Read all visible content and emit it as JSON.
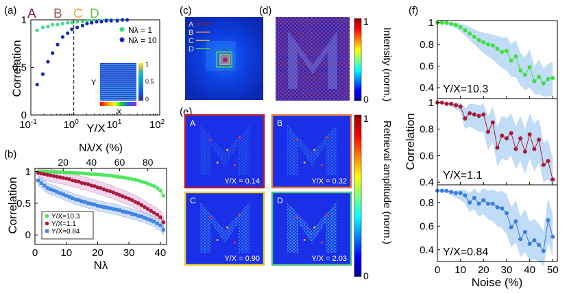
{
  "panel_labels": {
    "a": "(a)",
    "b": "(b)",
    "c": "(c)",
    "d": "(d)",
    "e": "(e)",
    "f": "(f)"
  },
  "letters": {
    "A": {
      "text": "A",
      "color": "#8b1a2b"
    },
    "B": {
      "text": "B",
      "color": "#9a5a5a"
    },
    "C": {
      "text": "C",
      "color": "#e8a23c"
    },
    "D": {
      "text": "D",
      "color": "#62c44a"
    }
  },
  "chart_data": [
    {
      "id": "a",
      "type": "scatter",
      "xscale": "log",
      "xlim": [
        0.1,
        100
      ],
      "ylim": [
        0,
        1
      ],
      "xlabel": "Y/X",
      "ylabel": "Correlation",
      "xticks": [
        {
          "v": 0.1,
          "base": "10",
          "exp": "-1"
        },
        {
          "v": 1,
          "base": "10",
          "exp": "0"
        },
        {
          "v": 10,
          "base": "10",
          "exp": "1"
        },
        {
          "v": 100,
          "base": "10",
          "exp": "2"
        }
      ],
      "yticks": [
        {
          "v": 0,
          "label": "0"
        },
        {
          "v": 0.5,
          "label": "0.5"
        },
        {
          "v": 1,
          "label": "1"
        }
      ],
      "vline_x": 1,
      "series": [
        {
          "name": "Nλ = 1",
          "color": "#3ddc84",
          "x": [
            0.14,
            0.19,
            0.25,
            0.32,
            0.42,
            0.55,
            0.72,
            0.9,
            1.2,
            1.6,
            2.03,
            2.6,
            3.4,
            4.4,
            5.7,
            7.4,
            10.3,
            13.5,
            17.5
          ],
          "y": [
            0.89,
            0.92,
            0.93,
            0.95,
            0.95,
            0.96,
            0.97,
            0.97,
            0.98,
            0.98,
            0.99,
            0.99,
            0.99,
            0.99,
            1.0,
            1.0,
            1.0,
            1.0,
            1.0
          ]
        },
        {
          "name": "Nλ = 10",
          "color": "#1428b4",
          "x": [
            0.14,
            0.19,
            0.25,
            0.32,
            0.42,
            0.55,
            0.72,
            0.9,
            1.2,
            1.6,
            2.03,
            2.6,
            3.4,
            4.4,
            5.7,
            7.4,
            10.3,
            13.5,
            17.5
          ],
          "y": [
            0.32,
            0.43,
            0.56,
            0.65,
            0.74,
            0.82,
            0.86,
            0.9,
            0.92,
            0.94,
            0.96,
            0.97,
            0.98,
            0.98,
            0.99,
            0.99,
            0.99,
            1.0,
            1.0
          ]
        }
      ],
      "inset": {
        "ylabel": "Y",
        "xlabel": "X",
        "ticks": [
          "1",
          "0.5",
          "0"
        ]
      }
    },
    {
      "id": "b",
      "type": "line",
      "xlim": [
        0,
        42
      ],
      "ylim": [
        -0.15,
        1.05
      ],
      "xlabel": "Nλ",
      "ylabel": "Correlation",
      "xticks": [
        0,
        10,
        20,
        30,
        40
      ],
      "yticks": [
        {
          "v": 0,
          "label": "0"
        },
        {
          "v": 0.5,
          "label": "0.5"
        },
        {
          "v": 1,
          "label": "1"
        }
      ],
      "top_axis": {
        "label": "Nλ/X (%)",
        "ticks": [
          {
            "v": 20,
            "label": "20"
          },
          {
            "v": 40,
            "label": "40"
          },
          {
            "v": 60,
            "label": "60"
          },
          {
            "v": 80,
            "label": "80"
          }
        ],
        "max_percent": 93.3
      },
      "series": [
        {
          "name": "Y/X=10.3",
          "color": "#4ee65c",
          "band": "#9df09a",
          "marker": "circle",
          "x": [
            1,
            2,
            3,
            4,
            5,
            6,
            7,
            8,
            9,
            10,
            11,
            12,
            13,
            14,
            15,
            16,
            17,
            18,
            19,
            20,
            21,
            22,
            23,
            24,
            25,
            26,
            27,
            28,
            29,
            30,
            31,
            32,
            33,
            34,
            35,
            36,
            37,
            38,
            39,
            40,
            41
          ],
          "y": [
            1.0,
            1.0,
            1.0,
            1.0,
            0.995,
            0.995,
            0.99,
            0.99,
            0.99,
            0.985,
            0.985,
            0.98,
            0.98,
            0.975,
            0.975,
            0.97,
            0.965,
            0.96,
            0.96,
            0.955,
            0.95,
            0.945,
            0.94,
            0.935,
            0.93,
            0.92,
            0.915,
            0.91,
            0.9,
            0.89,
            0.88,
            0.87,
            0.86,
            0.84,
            0.83,
            0.81,
            0.79,
            0.77,
            0.74,
            0.7,
            0.62
          ],
          "err": 0.02
        },
        {
          "name": "Y/X=1.1",
          "color": "#aa1a36",
          "band": "#e7a6e0",
          "marker": "circle",
          "x": [
            1,
            2,
            3,
            4,
            5,
            6,
            7,
            8,
            9,
            10,
            11,
            12,
            13,
            14,
            15,
            16,
            17,
            18,
            19,
            20,
            21,
            22,
            23,
            24,
            25,
            26,
            27,
            28,
            29,
            30,
            31,
            32,
            33,
            34,
            35,
            36,
            37,
            38,
            39,
            40,
            41
          ],
          "y": [
            0.98,
            0.97,
            0.96,
            0.95,
            0.94,
            0.93,
            0.92,
            0.91,
            0.9,
            0.89,
            0.88,
            0.86,
            0.85,
            0.84,
            0.82,
            0.81,
            0.8,
            0.78,
            0.77,
            0.75,
            0.74,
            0.72,
            0.7,
            0.69,
            0.67,
            0.65,
            0.63,
            0.61,
            0.59,
            0.57,
            0.55,
            0.52,
            0.5,
            0.47,
            0.44,
            0.41,
            0.38,
            0.35,
            0.32,
            0.28,
            0.2
          ],
          "err": 0.1
        },
        {
          "name": "Y/X=0.84",
          "color": "#3f86e6",
          "band": "#b8cdf3",
          "marker": "square",
          "x": [
            1,
            2,
            3,
            4,
            5,
            6,
            7,
            8,
            9,
            10,
            11,
            12,
            13,
            14,
            15,
            16,
            17,
            18,
            19,
            20,
            21,
            22,
            23,
            24,
            25,
            26,
            27,
            28,
            29,
            30,
            31,
            32,
            33,
            34,
            35,
            36,
            37,
            38,
            39,
            40,
            41
          ],
          "y": [
            0.86,
            0.82,
            0.78,
            0.74,
            0.72,
            0.7,
            0.68,
            0.66,
            0.64,
            0.62,
            0.6,
            0.58,
            0.56,
            0.55,
            0.53,
            0.52,
            0.5,
            0.49,
            0.48,
            0.46,
            0.45,
            0.44,
            0.43,
            0.42,
            0.41,
            0.4,
            0.39,
            0.37,
            0.36,
            0.35,
            0.33,
            0.32,
            0.3,
            0.29,
            0.27,
            0.25,
            0.23,
            0.21,
            0.18,
            0.15,
            0.08
          ],
          "err": 0.08
        }
      ]
    },
    {
      "id": "f",
      "type": "line",
      "xlim": [
        0,
        52
      ],
      "xlabel": "Noise (%)",
      "ylabel": "Correlation",
      "xticks": [
        0,
        10,
        20,
        30,
        40,
        50
      ],
      "subplots": [
        {
          "label": "Y/X=10.3",
          "color": "#40e040",
          "band": "#b6d6f4",
          "ylim": [
            0.3,
            1.02
          ],
          "yticks": [
            {
              "v": 0.4,
              "label": "0.4"
            },
            {
              "v": 0.6,
              "label": "0.6"
            },
            {
              "v": 0.8,
              "label": "0.8"
            },
            {
              "v": 1,
              "label": "1"
            }
          ],
          "x": [
            0,
            2,
            4,
            6,
            8,
            10,
            12,
            14,
            16,
            18,
            20,
            22,
            24,
            26,
            28,
            30,
            32,
            34,
            36,
            38,
            40,
            42,
            44,
            46,
            48,
            50
          ],
          "y": [
            1.0,
            1.0,
            1.0,
            0.99,
            0.98,
            0.96,
            0.93,
            0.9,
            0.87,
            0.84,
            0.82,
            0.8,
            0.79,
            0.76,
            0.73,
            0.74,
            0.65,
            0.69,
            0.56,
            0.52,
            0.59,
            0.46,
            0.5,
            0.44,
            0.48,
            0.49
          ],
          "band_lo": [
            1.0,
            0.99,
            0.98,
            0.97,
            0.95,
            0.92,
            0.88,
            0.84,
            0.8,
            0.76,
            0.72,
            0.69,
            0.66,
            0.62,
            0.58,
            0.56,
            0.5,
            0.5,
            0.42,
            0.38,
            0.4,
            0.34,
            0.34,
            0.32,
            0.32,
            0.33
          ],
          "band_hi": [
            1.0,
            1.0,
            1.0,
            1.0,
            1.0,
            0.99,
            0.98,
            0.96,
            0.94,
            0.92,
            0.91,
            0.9,
            0.89,
            0.88,
            0.86,
            0.87,
            0.8,
            0.84,
            0.72,
            0.68,
            0.75,
            0.6,
            0.66,
            0.58,
            0.62,
            0.64
          ]
        },
        {
          "label": "Y/X=1.1",
          "color": "#aa1a36",
          "band": "#b6d6f4",
          "ylim": [
            0.38,
            1.03
          ],
          "yticks": [
            {
              "v": 0.4,
              "label": "0.4"
            },
            {
              "v": 0.6,
              "label": "0.6"
            },
            {
              "v": 0.8,
              "label": "0.8"
            },
            {
              "v": 1,
              "label": "1"
            }
          ],
          "x": [
            0,
            2,
            4,
            6,
            8,
            10,
            12,
            14,
            16,
            18,
            20,
            22,
            24,
            26,
            28,
            30,
            32,
            34,
            36,
            38,
            40,
            42,
            44,
            46,
            48,
            50
          ],
          "y": [
            1.0,
            1.0,
            0.99,
            0.99,
            0.98,
            0.97,
            0.88,
            0.92,
            0.91,
            0.9,
            0.91,
            0.78,
            0.85,
            0.66,
            0.75,
            0.73,
            0.77,
            0.65,
            0.73,
            0.63,
            0.76,
            0.65,
            0.72,
            0.53,
            0.56,
            0.42
          ],
          "band_lo": [
            1.0,
            0.99,
            0.98,
            0.97,
            0.95,
            0.93,
            0.8,
            0.82,
            0.8,
            0.78,
            0.78,
            0.64,
            0.7,
            0.52,
            0.58,
            0.56,
            0.6,
            0.5,
            0.56,
            0.46,
            0.58,
            0.48,
            0.55,
            0.4,
            0.42,
            0.38
          ],
          "band_hi": [
            1.0,
            1.0,
            1.0,
            1.0,
            1.0,
            1.0,
            0.96,
            0.99,
            0.99,
            0.98,
            0.99,
            0.9,
            0.97,
            0.82,
            0.9,
            0.88,
            0.92,
            0.82,
            0.9,
            0.8,
            0.92,
            0.84,
            0.88,
            0.7,
            0.72,
            0.58
          ]
        },
        {
          "label": "Y/X=0.84",
          "color": "#3a7de0",
          "band": "#b6d6f4",
          "ylim": [
            0.3,
            0.95
          ],
          "yticks": [
            {
              "v": 0.4,
              "label": "0.4"
            },
            {
              "v": 0.6,
              "label": "0.6"
            },
            {
              "v": 0.8,
              "label": "0.8"
            }
          ],
          "x": [
            0,
            2,
            4,
            6,
            8,
            10,
            12,
            14,
            16,
            18,
            20,
            22,
            24,
            26,
            28,
            30,
            32,
            34,
            36,
            38,
            40,
            42,
            44,
            46,
            48,
            50
          ],
          "y": [
            0.9,
            0.9,
            0.9,
            0.89,
            0.88,
            0.88,
            0.86,
            0.8,
            0.84,
            0.79,
            0.82,
            0.79,
            0.79,
            0.76,
            0.75,
            0.71,
            0.59,
            0.64,
            0.49,
            0.55,
            0.45,
            0.48,
            0.44,
            0.39,
            0.65,
            0.51
          ],
          "band_lo": [
            0.9,
            0.89,
            0.88,
            0.86,
            0.84,
            0.82,
            0.79,
            0.72,
            0.74,
            0.68,
            0.7,
            0.66,
            0.64,
            0.6,
            0.58,
            0.53,
            0.42,
            0.46,
            0.34,
            0.38,
            0.31,
            0.32,
            0.3,
            0.26,
            0.46,
            0.34
          ],
          "band_hi": [
            0.9,
            0.9,
            0.9,
            0.9,
            0.9,
            0.91,
            0.91,
            0.88,
            0.92,
            0.88,
            0.92,
            0.9,
            0.91,
            0.89,
            0.9,
            0.87,
            0.76,
            0.82,
            0.68,
            0.74,
            0.64,
            0.66,
            0.62,
            0.56,
            0.84,
            0.7
          ]
        }
      ]
    }
  ],
  "panel_c": {
    "legend": [
      {
        "label": "A",
        "color": "#8b1a2b"
      },
      {
        "label": "B",
        "color": "#e0807a"
      },
      {
        "label": "C",
        "color": "#e8c030"
      },
      {
        "label": "D",
        "color": "#5ad24e"
      }
    ]
  },
  "colorbar_intensity": {
    "ticks": [
      "1",
      "0"
    ],
    "label": "Intensity (norm.)"
  },
  "colorbar_retrieval": {
    "ticks": [
      "1",
      "0"
    ],
    "label": "Retrieval amplitude (norm.)"
  },
  "panel_e": [
    {
      "letter": "A",
      "ratio": "Y/X = 0.14",
      "frame": "#c01830"
    },
    {
      "letter": "B",
      "ratio": "Y/X = 0.32",
      "frame": "#e87a3a"
    },
    {
      "letter": "C",
      "ratio": "Y/X = 0.90",
      "frame": "#e8d030"
    },
    {
      "letter": "D",
      "ratio": "Y/X = 2.03",
      "frame": "#50c87a"
    }
  ]
}
